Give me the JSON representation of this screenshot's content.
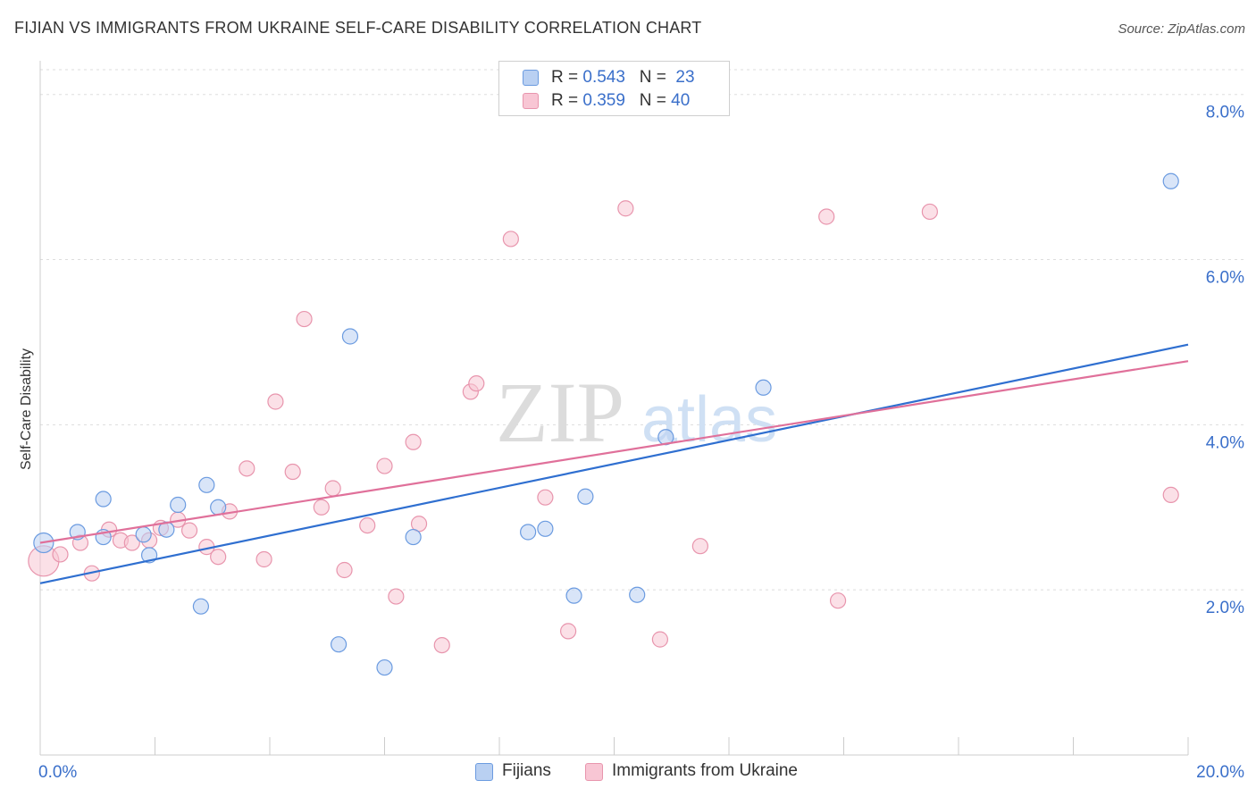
{
  "title": "FIJIAN VS IMMIGRANTS FROM UKRAINE SELF-CARE DISABILITY CORRELATION CHART",
  "source": "Source: ZipAtlas.com",
  "watermark": {
    "zip": "ZIP",
    "atlas": "atlas"
  },
  "chart_data": {
    "type": "scatter",
    "xlabel": "",
    "ylabel": "Self-Care Disability",
    "xlim": [
      0,
      20
    ],
    "ylim": [
      0,
      8.3
    ],
    "x_tick_labels": [
      "0.0%",
      "20.0%"
    ],
    "y_ticks": [
      2,
      4,
      6,
      8
    ],
    "y_tick_labels": [
      "2.0%",
      "4.0%",
      "6.0%",
      "8.0%"
    ],
    "grid": true,
    "legend": "top-center",
    "series": [
      {
        "name": "Fijians",
        "color": "#6b9be0",
        "fill": "#b9d0f2",
        "r": "0.543",
        "n": "23",
        "trend": [
          [
            0,
            2.08
          ],
          [
            20,
            4.97
          ]
        ],
        "points": [
          [
            0.06,
            2.57
          ],
          [
            0.65,
            2.7
          ],
          [
            1.1,
            3.1
          ],
          [
            1.9,
            2.42
          ],
          [
            2.4,
            3.03
          ],
          [
            1.1,
            2.64
          ],
          [
            2.9,
            3.27
          ],
          [
            1.8,
            2.67
          ],
          [
            2.2,
            2.73
          ],
          [
            3.1,
            3.0
          ],
          [
            2.8,
            1.8
          ],
          [
            5.4,
            5.07
          ],
          [
            5.2,
            1.34
          ],
          [
            6.0,
            1.06
          ],
          [
            6.5,
            2.64
          ],
          [
            8.8,
            2.74
          ],
          [
            8.5,
            2.7
          ],
          [
            9.5,
            3.13
          ],
          [
            9.3,
            1.93
          ],
          [
            10.4,
            1.94
          ],
          [
            10.9,
            3.85
          ],
          [
            12.6,
            4.45
          ],
          [
            19.7,
            6.95
          ]
        ]
      },
      {
        "name": "Immigrants from Ukraine",
        "color": "#e895ad",
        "fill": "#f8c6d4",
        "r": "0.359",
        "n": "40",
        "trend": [
          [
            0,
            2.57
          ],
          [
            20,
            4.77
          ]
        ],
        "points": [
          [
            0.06,
            2.35
          ],
          [
            0.35,
            2.43
          ],
          [
            0.7,
            2.57
          ],
          [
            0.9,
            2.2
          ],
          [
            1.2,
            2.73
          ],
          [
            1.4,
            2.6
          ],
          [
            1.6,
            2.57
          ],
          [
            1.9,
            2.6
          ],
          [
            2.1,
            2.75
          ],
          [
            2.4,
            2.85
          ],
          [
            2.6,
            2.72
          ],
          [
            2.9,
            2.52
          ],
          [
            3.1,
            2.4
          ],
          [
            3.3,
            2.95
          ],
          [
            3.6,
            3.47
          ],
          [
            3.9,
            2.37
          ],
          [
            4.1,
            4.28
          ],
          [
            4.4,
            3.43
          ],
          [
            4.6,
            5.28
          ],
          [
            4.9,
            3.0
          ],
          [
            5.1,
            3.23
          ],
          [
            5.3,
            2.24
          ],
          [
            5.7,
            2.78
          ],
          [
            6.0,
            3.5
          ],
          [
            6.2,
            1.92
          ],
          [
            6.5,
            3.79
          ],
          [
            6.6,
            2.8
          ],
          [
            7.0,
            1.33
          ],
          [
            7.5,
            4.4
          ],
          [
            7.6,
            4.5
          ],
          [
            8.2,
            6.25
          ],
          [
            8.8,
            3.12
          ],
          [
            9.2,
            1.5
          ],
          [
            10.2,
            6.62
          ],
          [
            10.8,
            1.4
          ],
          [
            11.5,
            2.53
          ],
          [
            13.7,
            6.52
          ],
          [
            13.9,
            1.87
          ],
          [
            15.5,
            6.58
          ],
          [
            19.7,
            3.15
          ]
        ]
      }
    ]
  }
}
